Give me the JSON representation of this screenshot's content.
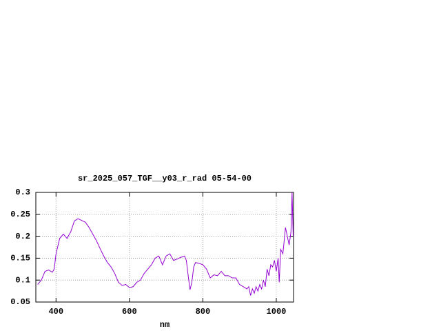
{
  "chart_data": {
    "type": "line",
    "title": "sr_2025_057_TGF__y03_r_rad 05-54-00",
    "xlabel": "nm",
    "xlim": [
      345,
      1047
    ],
    "ylim": [
      0.05,
      0.3
    ],
    "xticks": [
      400,
      600,
      800,
      1000
    ],
    "yticks": [
      0.05,
      0.1,
      0.15,
      0.2,
      0.25,
      0.3
    ],
    "grid": true,
    "series": [
      {
        "color": "#9400d3",
        "x": [
          350,
          360,
          370,
          380,
          390,
          395,
          400,
          410,
          420,
          430,
          440,
          450,
          460,
          470,
          480,
          490,
          500,
          510,
          520,
          530,
          540,
          550,
          560,
          570,
          580,
          590,
          600,
          610,
          620,
          630,
          640,
          650,
          660,
          670,
          680,
          690,
          700,
          710,
          720,
          730,
          740,
          750,
          755,
          760,
          765,
          770,
          775,
          780,
          790,
          800,
          810,
          820,
          830,
          840,
          850,
          860,
          870,
          880,
          890,
          900,
          910,
          920,
          925,
          930,
          935,
          940,
          945,
          950,
          955,
          960,
          965,
          970,
          975,
          980,
          985,
          990,
          995,
          1000,
          1005,
          1008,
          1012,
          1018,
          1025,
          1030,
          1035,
          1040,
          1043,
          1046
        ],
        "values": [
          0.09,
          0.1,
          0.12,
          0.123,
          0.118,
          0.125,
          0.16,
          0.195,
          0.205,
          0.195,
          0.21,
          0.235,
          0.24,
          0.236,
          0.232,
          0.22,
          0.205,
          0.19,
          0.172,
          0.155,
          0.14,
          0.13,
          0.115,
          0.095,
          0.088,
          0.09,
          0.083,
          0.085,
          0.095,
          0.1,
          0.115,
          0.125,
          0.135,
          0.15,
          0.155,
          0.135,
          0.155,
          0.16,
          0.145,
          0.148,
          0.152,
          0.155,
          0.145,
          0.11,
          0.078,
          0.095,
          0.13,
          0.14,
          0.138,
          0.135,
          0.125,
          0.105,
          0.112,
          0.11,
          0.12,
          0.11,
          0.11,
          0.105,
          0.105,
          0.09,
          0.085,
          0.08,
          0.085,
          0.065,
          0.08,
          0.07,
          0.085,
          0.075,
          0.09,
          0.08,
          0.1,
          0.085,
          0.125,
          0.11,
          0.135,
          0.13,
          0.145,
          0.12,
          0.15,
          0.095,
          0.17,
          0.16,
          0.22,
          0.2,
          0.18,
          0.21,
          0.3,
          0.2
        ]
      }
    ]
  }
}
